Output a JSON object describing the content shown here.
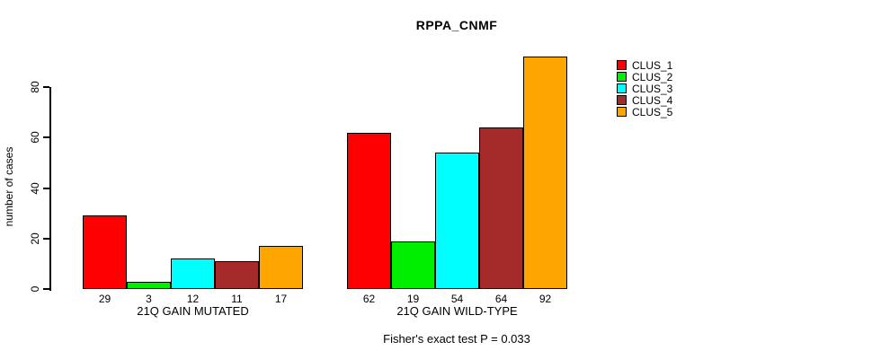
{
  "chart_data": {
    "type": "bar",
    "title": "RPPA_CNMF",
    "xlabel": "",
    "ylabel": "number of cases",
    "yticks": [
      0,
      20,
      40,
      60,
      80
    ],
    "ylim": [
      0,
      95
    ],
    "grid": false,
    "legend_position": "top-right",
    "bar_value_labels_shown": true,
    "categories": [
      "21Q GAIN MUTATED",
      "21Q GAIN WILD-TYPE"
    ],
    "series": [
      {
        "name": "CLUS_1",
        "color": "#FF0000",
        "values": [
          29,
          62
        ]
      },
      {
        "name": "CLUS_2",
        "color": "#00EE00",
        "values": [
          3,
          19
        ]
      },
      {
        "name": "CLUS_3",
        "color": "#00FFFF",
        "values": [
          12,
          54
        ]
      },
      {
        "name": "CLUS_4",
        "color": "#A52A2A",
        "values": [
          11,
          64
        ]
      },
      {
        "name": "CLUS_5",
        "color": "#FFA500",
        "values": [
          17,
          92
        ]
      }
    ],
    "footnote": "Fisher's exact test P = 0.033"
  }
}
